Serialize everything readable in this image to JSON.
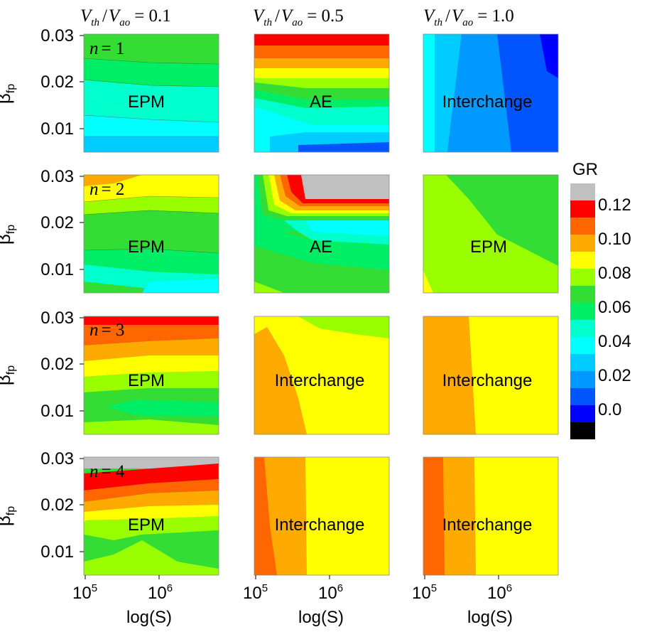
{
  "chart_data": {
    "type": "contour-grid",
    "column_titles": [
      {
        "var": "V",
        "sub1": "th",
        "sep": "/",
        "var2": "V",
        "sub2": "ao",
        "eq": "= 0.1"
      },
      {
        "var": "V",
        "sub1": "th",
        "sep": "/",
        "var2": "V",
        "sub2": "ao",
        "eq": "= 0.5"
      },
      {
        "var": "V",
        "sub1": "th",
        "sep": "/",
        "var2": "V",
        "sub2": "ao",
        "eq": "= 1.0"
      }
    ],
    "row_labels": [
      {
        "var": "n",
        "eq": "= 1"
      },
      {
        "var": "n",
        "eq": "= 2"
      },
      {
        "var": "n",
        "eq": "= 3"
      },
      {
        "var": "n",
        "eq": "= 4"
      }
    ],
    "ylabel": {
      "main": "β",
      "sub": "fp"
    },
    "xlabel": "log(S)",
    "x_ticks": [
      {
        "base": "10",
        "exp": "5"
      },
      {
        "base": "10",
        "exp": "6"
      }
    ],
    "y_ticks": [
      "0.03",
      "0.02",
      "0.01"
    ],
    "xlim": [
      100000,
      5000000
    ],
    "ylim": [
      0.005,
      0.03
    ],
    "panels": [
      [
        {
          "label": "EPM"
        },
        {
          "label": "AE"
        },
        {
          "label": "Interchange"
        }
      ],
      [
        {
          "label": "EPM"
        },
        {
          "label": "AE"
        },
        {
          "label": "EPM"
        }
      ],
      [
        {
          "label": "EPM"
        },
        {
          "label": "Interchange"
        },
        {
          "label": "Interchange"
        }
      ],
      [
        {
          "label": "EPM"
        },
        {
          "label": "Interchange"
        },
        {
          "label": "Interchange"
        }
      ]
    ],
    "colorbar": {
      "title": "GR",
      "levels": [
        "0.12",
        "0.10",
        "0.08",
        "0.06",
        "0.04",
        "0.02",
        "0.0"
      ],
      "colors": [
        "#c0c0c0",
        "#ff0000",
        "#ff6600",
        "#ffaa00",
        "#ffff00",
        "#99ff00",
        "#33dd33",
        "#00ee66",
        "#00ffcc",
        "#00ffff",
        "#00ccff",
        "#0099ff",
        "#0055ff",
        "#0000ff",
        "#000000"
      ]
    }
  }
}
